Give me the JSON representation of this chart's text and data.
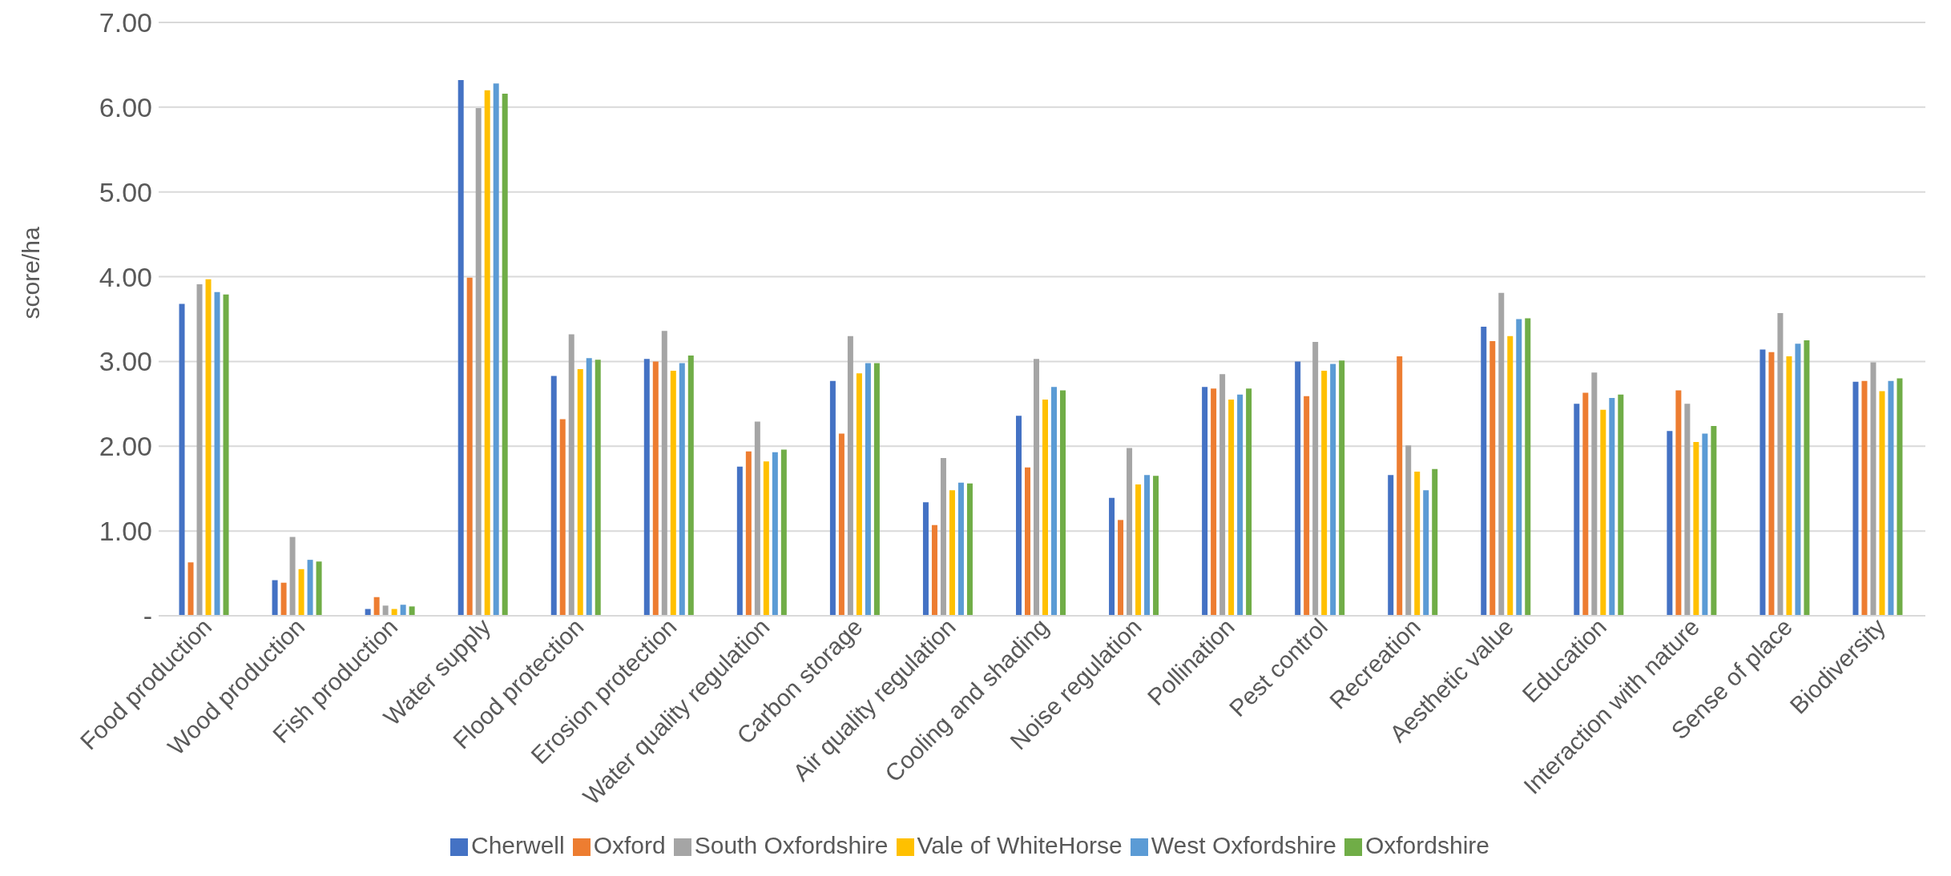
{
  "chart_data": {
    "type": "bar",
    "ylabel": "score/ha",
    "categories": [
      "Food production",
      "Wood production",
      "Fish production",
      "Water supply",
      "Flood protection",
      "Erosion protection",
      "Water quality regulation",
      "Carbon storage",
      "Air quality regulation",
      "Cooling and shading",
      "Noise regulation",
      "Pollination",
      "Pest control",
      "Recreation",
      "Aesthetic value",
      "Education",
      "Interaction with nature",
      "Sense of place",
      "Biodiversity"
    ],
    "series": [
      {
        "name": "Cherwell",
        "color": "#4472c4",
        "values": [
          3.68,
          0.42,
          0.08,
          6.32,
          2.83,
          3.03,
          1.76,
          2.77,
          1.34,
          2.36,
          1.39,
          2.7,
          3.0,
          1.66,
          3.41,
          2.5,
          2.18,
          3.14,
          2.76
        ]
      },
      {
        "name": "Oxford",
        "color": "#ed7d31",
        "values": [
          0.63,
          0.39,
          0.22,
          3.99,
          2.32,
          3.0,
          1.94,
          2.15,
          1.07,
          1.75,
          1.13,
          2.68,
          2.59,
          3.06,
          3.24,
          2.63,
          2.66,
          3.11,
          2.77
        ]
      },
      {
        "name": "South Oxfordshire",
        "color": "#a5a5a5",
        "values": [
          3.91,
          0.93,
          0.12,
          5.99,
          3.32,
          3.36,
          2.29,
          3.3,
          1.86,
          3.03,
          1.98,
          2.85,
          3.23,
          2.01,
          3.81,
          2.87,
          2.5,
          3.57,
          2.99
        ]
      },
      {
        "name": "Vale of WhiteHorse",
        "color": "#ffc000",
        "values": [
          3.97,
          0.55,
          0.08,
          6.2,
          2.91,
          2.89,
          1.82,
          2.86,
          1.48,
          2.55,
          1.55,
          2.55,
          2.89,
          1.7,
          3.3,
          2.43,
          2.05,
          3.06,
          2.65
        ]
      },
      {
        "name": "West Oxfordshire",
        "color": "#5b9bd5",
        "values": [
          3.82,
          0.66,
          0.13,
          6.28,
          3.04,
          2.98,
          1.93,
          2.98,
          1.57,
          2.7,
          1.66,
          2.61,
          2.97,
          1.48,
          3.5,
          2.57,
          2.15,
          3.21,
          2.77
        ]
      },
      {
        "name": "Oxfordshire",
        "color": "#70ad47",
        "values": [
          3.79,
          0.64,
          0.11,
          6.16,
          3.02,
          3.07,
          1.96,
          2.98,
          1.56,
          2.66,
          1.65,
          2.68,
          3.01,
          1.73,
          3.51,
          2.61,
          2.24,
          3.25,
          2.8
        ]
      }
    ],
    "ylim": [
      0,
      7
    ],
    "yticks": [
      {
        "value": 0,
        "label": "-"
      },
      {
        "value": 1,
        "label": "1.00"
      },
      {
        "value": 2,
        "label": "2.00"
      },
      {
        "value": 3,
        "label": "3.00"
      },
      {
        "value": 4,
        "label": "4.00"
      },
      {
        "value": 5,
        "label": "5.00"
      },
      {
        "value": 6,
        "label": "6.00"
      },
      {
        "value": 7,
        "label": "7.00"
      }
    ],
    "grid": "y",
    "legend": "bottom"
  }
}
